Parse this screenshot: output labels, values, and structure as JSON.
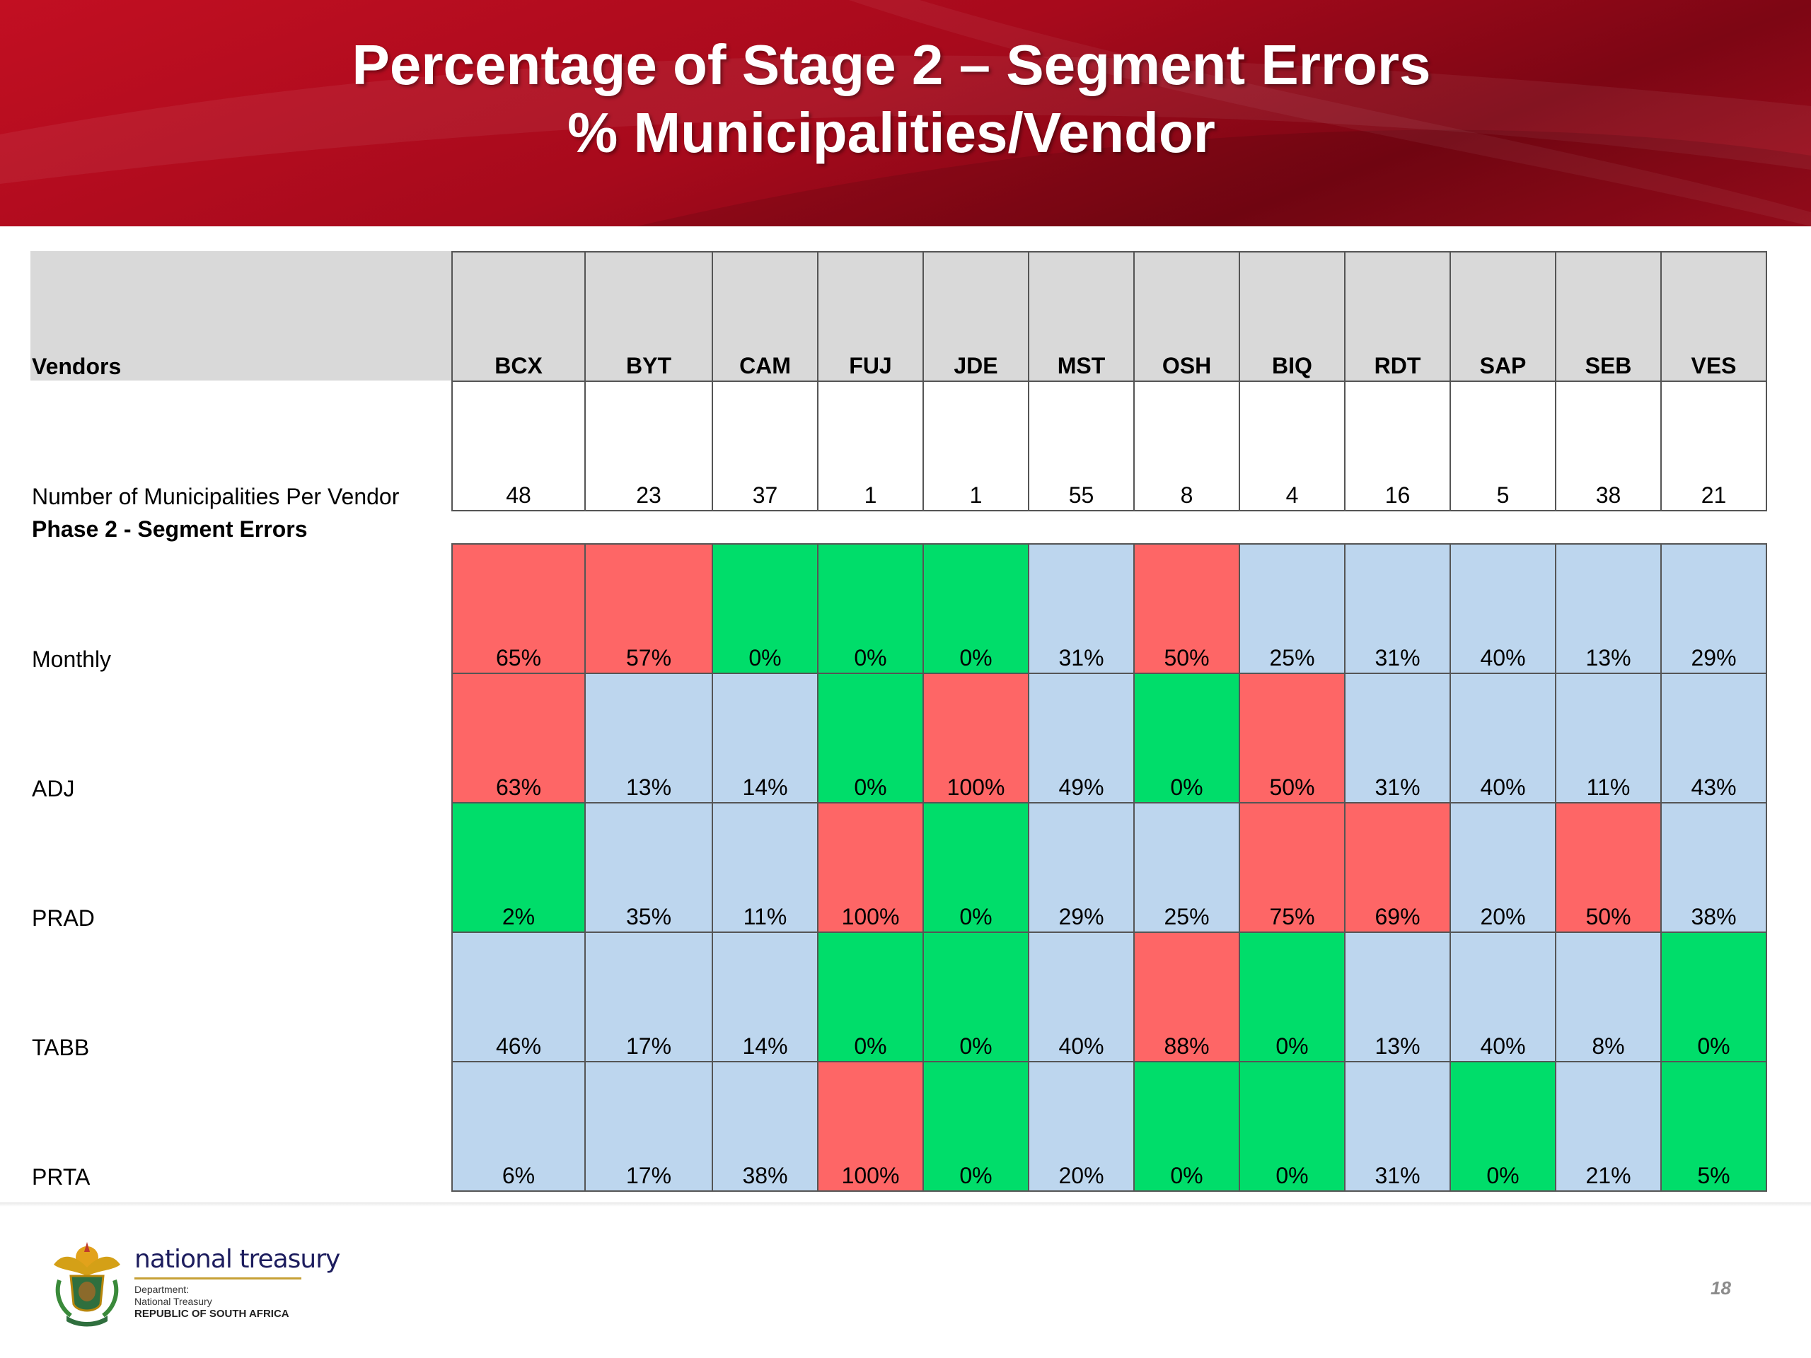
{
  "title": {
    "line1": "Percentage of  Stage 2 – Segment Errors",
    "line2": "% Municipalities/Vendor"
  },
  "table": {
    "vendors_label": "Vendors",
    "count_label": "Number of Municipalities Per Vendor",
    "section_label": "Phase 2 - Segment Errors",
    "vendors": [
      "BCX",
      "BYT",
      "CAM",
      "FUJ",
      "JDE",
      "MST",
      "OSH",
      "BIQ",
      "RDT",
      "SAP",
      "SEB",
      "VES"
    ],
    "counts": [
      "48",
      "23",
      "37",
      "1",
      "1",
      "55",
      "8",
      "4",
      "16",
      "5",
      "38",
      "21"
    ],
    "rows": [
      {
        "label": "Monthly",
        "values": [
          "65%",
          "57%",
          "0%",
          "0%",
          "0%",
          "31%",
          "50%",
          "25%",
          "31%",
          "40%",
          "13%",
          "29%"
        ],
        "colors": [
          "red",
          "red",
          "green",
          "green",
          "green",
          "blue",
          "red",
          "blue",
          "blue",
          "blue",
          "blue",
          "blue"
        ]
      },
      {
        "label": "ADJ",
        "values": [
          "63%",
          "13%",
          "14%",
          "0%",
          "100%",
          "49%",
          "0%",
          "50%",
          "31%",
          "40%",
          "11%",
          "43%"
        ],
        "colors": [
          "red",
          "blue",
          "blue",
          "green",
          "red",
          "blue",
          "green",
          "red",
          "blue",
          "blue",
          "blue",
          "blue"
        ]
      },
      {
        "label": "PRAD",
        "values": [
          "2%",
          "35%",
          "11%",
          "100%",
          "0%",
          "29%",
          "25%",
          "75%",
          "69%",
          "20%",
          "50%",
          "38%"
        ],
        "colors": [
          "green",
          "blue",
          "blue",
          "red",
          "green",
          "blue",
          "blue",
          "red",
          "red",
          "blue",
          "red",
          "blue"
        ]
      },
      {
        "label": "TABB",
        "values": [
          "46%",
          "17%",
          "14%",
          "0%",
          "0%",
          "40%",
          "88%",
          "0%",
          "13%",
          "40%",
          "8%",
          "0%"
        ],
        "colors": [
          "blue",
          "blue",
          "blue",
          "green",
          "green",
          "blue",
          "red",
          "green",
          "blue",
          "blue",
          "blue",
          "green"
        ]
      },
      {
        "label": "PRTA",
        "values": [
          "6%",
          "17%",
          "38%",
          "100%",
          "0%",
          "20%",
          "0%",
          "0%",
          "31%",
          "0%",
          "21%",
          "5%"
        ],
        "colors": [
          "blue",
          "blue",
          "blue",
          "red",
          "green",
          "blue",
          "green",
          "green",
          "blue",
          "green",
          "blue",
          "green"
        ]
      }
    ]
  },
  "footer": {
    "logo_name": "national treasury",
    "dept_line1": "Department:",
    "dept_line2": "National Treasury",
    "dept_line3": "REPUBLIC OF SOUTH AFRICA",
    "crest_icon": "coat-of-arms-icon",
    "page_number": "18"
  },
  "colors": {
    "banner_red": "#b00b1d",
    "cell_red": "#fe6666",
    "cell_green": "#00dd6a",
    "cell_blue": "#bdd6ee",
    "header_gray": "#d9d9d9"
  }
}
